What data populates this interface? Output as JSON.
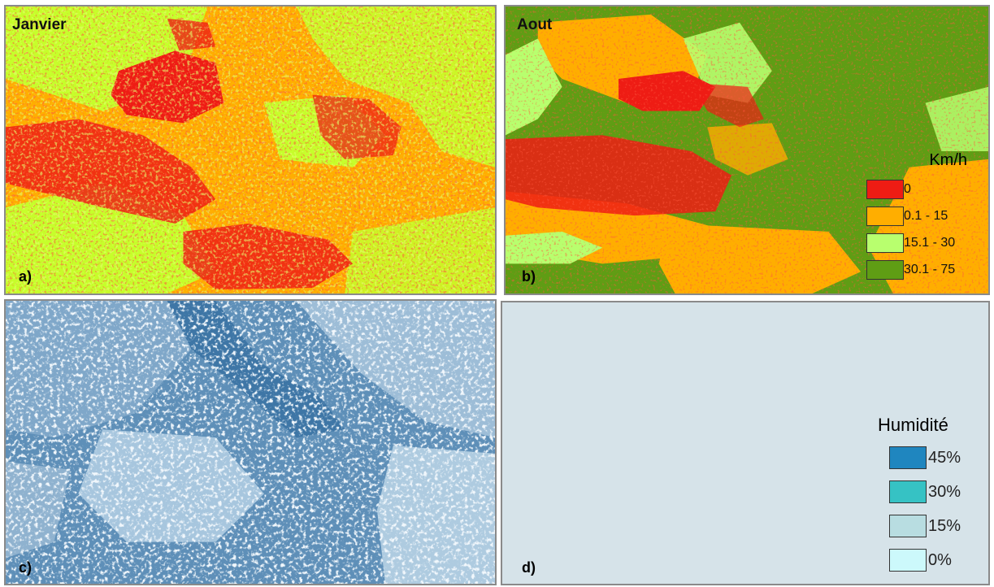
{
  "panels": {
    "a": {
      "title": "Janvier",
      "label": "a)"
    },
    "b": {
      "title": "Aout",
      "label": "b)"
    },
    "c": {
      "label": "c)"
    },
    "d": {
      "label": "d)"
    }
  },
  "wind_legend": {
    "title": "Km/h",
    "items": [
      {
        "label": "0",
        "color": "#ee1c14"
      },
      {
        "label": "0.1 - 15",
        "color": "#ffae00"
      },
      {
        "label": "15.1 - 30",
        "color": "#b8ff6e"
      },
      {
        "label": "30.1 - 75",
        "color": "#5f9d14"
      }
    ]
  },
  "humidity_legend": {
    "title": "Humidité",
    "items": [
      {
        "label": "45%",
        "color": "#1f86bf"
      },
      {
        "label": "30%",
        "color": "#36c2c4"
      },
      {
        "label": "15%",
        "color": "#b8dde1"
      },
      {
        "label": "0%",
        "color": "#ccf9fb"
      }
    ]
  },
  "colors": {
    "wind_red": "#ee1c14",
    "wind_orange": "#ffae00",
    "wind_light_green": "#c6ff2a",
    "wind_dark_green": "#5f9d14",
    "humidity_base": "#5e8fb8",
    "empty_panel": "#d6e3e9"
  }
}
